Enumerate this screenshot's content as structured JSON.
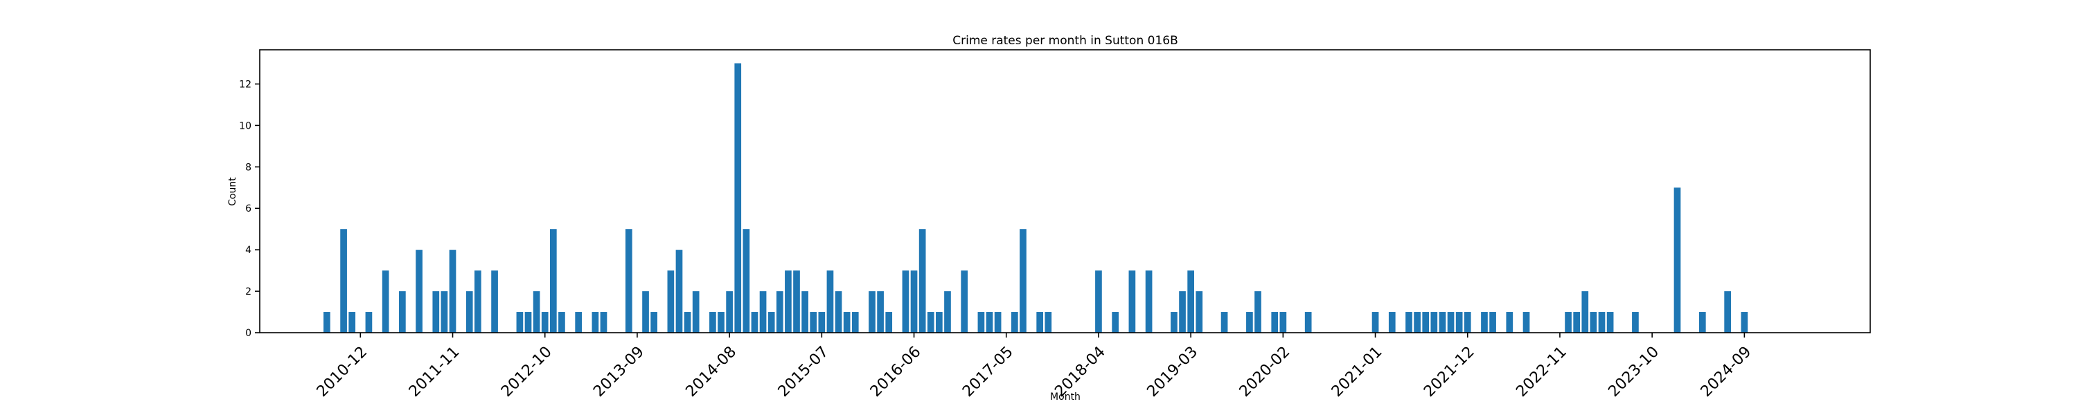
{
  "chart_data": {
    "type": "bar",
    "title": "Crime rates per month in Sutton 016B",
    "xlabel": "Month",
    "ylabel": "Count",
    "ylim": [
      0,
      13.65
    ],
    "yticks": [
      0,
      2,
      4,
      6,
      8,
      10,
      12
    ],
    "xlim": [
      "2009-12",
      "2025-12"
    ],
    "xticks": [
      "2010-12",
      "2011-11",
      "2012-10",
      "2013-09",
      "2014-08",
      "2015-07",
      "2016-06",
      "2017-05",
      "2018-04",
      "2019-03",
      "2020-02",
      "2021-01",
      "2021-12",
      "2022-11",
      "2023-10",
      "2024-09"
    ],
    "bar_color": "#1f77b4",
    "grid": false,
    "legend": "none",
    "x": [
      "2010-08",
      "2010-10",
      "2010-11",
      "2011-01",
      "2011-03",
      "2011-05",
      "2011-07",
      "2011-09",
      "2011-10",
      "2011-11",
      "2012-01",
      "2012-02",
      "2012-04",
      "2012-07",
      "2012-08",
      "2012-09",
      "2012-10",
      "2012-11",
      "2012-12",
      "2013-02",
      "2013-04",
      "2013-05",
      "2013-08",
      "2013-10",
      "2013-11",
      "2014-01",
      "2014-02",
      "2014-03",
      "2014-04",
      "2014-06",
      "2014-07",
      "2014-08",
      "2014-09",
      "2014-10",
      "2014-11",
      "2014-12",
      "2015-01",
      "2015-02",
      "2015-03",
      "2015-04",
      "2015-05",
      "2015-06",
      "2015-07",
      "2015-08",
      "2015-09",
      "2015-10",
      "2015-11",
      "2016-01",
      "2016-02",
      "2016-03",
      "2016-05",
      "2016-06",
      "2016-07",
      "2016-08",
      "2016-09",
      "2016-10",
      "2016-12",
      "2017-02",
      "2017-03",
      "2017-04",
      "2017-06",
      "2017-07",
      "2017-09",
      "2017-10",
      "2018-04",
      "2018-06",
      "2018-08",
      "2018-10",
      "2019-01",
      "2019-02",
      "2019-03",
      "2019-04",
      "2019-07",
      "2019-10",
      "2019-11",
      "2020-01",
      "2020-02",
      "2020-05",
      "2021-01",
      "2021-03",
      "2021-05",
      "2021-06",
      "2021-07",
      "2021-08",
      "2021-09",
      "2021-10",
      "2021-11",
      "2021-12",
      "2022-02",
      "2022-03",
      "2022-05",
      "2022-07",
      "2022-12",
      "2023-01",
      "2023-02",
      "2023-03",
      "2023-04",
      "2023-05",
      "2023-08",
      "2024-01",
      "2024-04",
      "2024-07",
      "2024-09"
    ],
    "values": [
      1,
      5,
      1,
      1,
      3,
      2,
      4,
      2,
      2,
      4,
      2,
      3,
      3,
      1,
      1,
      2,
      1,
      5,
      1,
      1,
      1,
      1,
      5,
      2,
      1,
      3,
      4,
      1,
      2,
      1,
      1,
      2,
      13,
      5,
      1,
      2,
      1,
      2,
      3,
      3,
      2,
      1,
      1,
      3,
      2,
      1,
      1,
      2,
      2,
      1,
      3,
      3,
      5,
      1,
      1,
      2,
      3,
      1,
      1,
      1,
      1,
      5,
      1,
      1,
      3,
      1,
      3,
      3,
      1,
      2,
      3,
      2,
      1,
      1,
      2,
      1,
      1,
      1,
      1,
      1,
      1,
      1,
      1,
      1,
      1,
      1,
      1,
      1,
      1,
      1,
      1,
      1,
      1,
      1,
      2,
      1,
      1,
      1,
      1,
      7,
      1,
      2,
      1
    ]
  }
}
